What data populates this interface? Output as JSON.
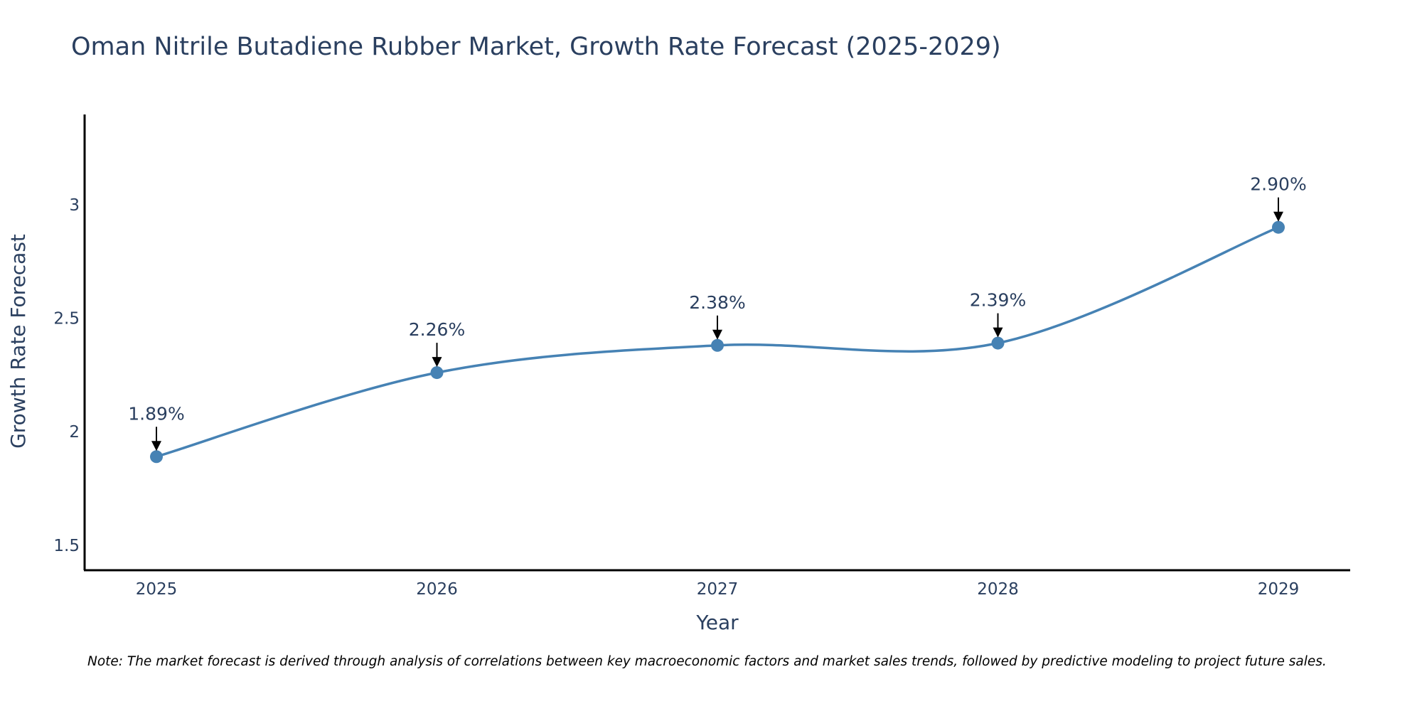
{
  "chart_data": {
    "type": "line",
    "title": "Oman Nitrile Butadiene Rubber Market, Growth Rate Forecast (2025-2029)",
    "xlabel": "Year",
    "ylabel": "Growth Rate Forecast",
    "categories": [
      "2025",
      "2026",
      "2027",
      "2028",
      "2029"
    ],
    "series": [
      {
        "name": "Growth Rate Forecast",
        "values": [
          1.89,
          2.26,
          2.38,
          2.39,
          2.9
        ],
        "data_labels": [
          "1.89%",
          "2.26%",
          "2.38%",
          "2.39%",
          "2.90%"
        ]
      }
    ],
    "ylim": [
      1.39,
      3.4
    ],
    "yticks": [
      1.5,
      2,
      2.5,
      3
    ],
    "ytick_labels": [
      "1.5",
      "2",
      "2.5",
      "3"
    ],
    "grid": false,
    "line_color": "#4682b4",
    "marker_color": "#4682b4",
    "arrow_color": "#000000",
    "note": "Note: The market forecast is derived through analysis of correlations between key macroeconomic factors and market sales trends, followed by predictive modeling to project future sales."
  }
}
